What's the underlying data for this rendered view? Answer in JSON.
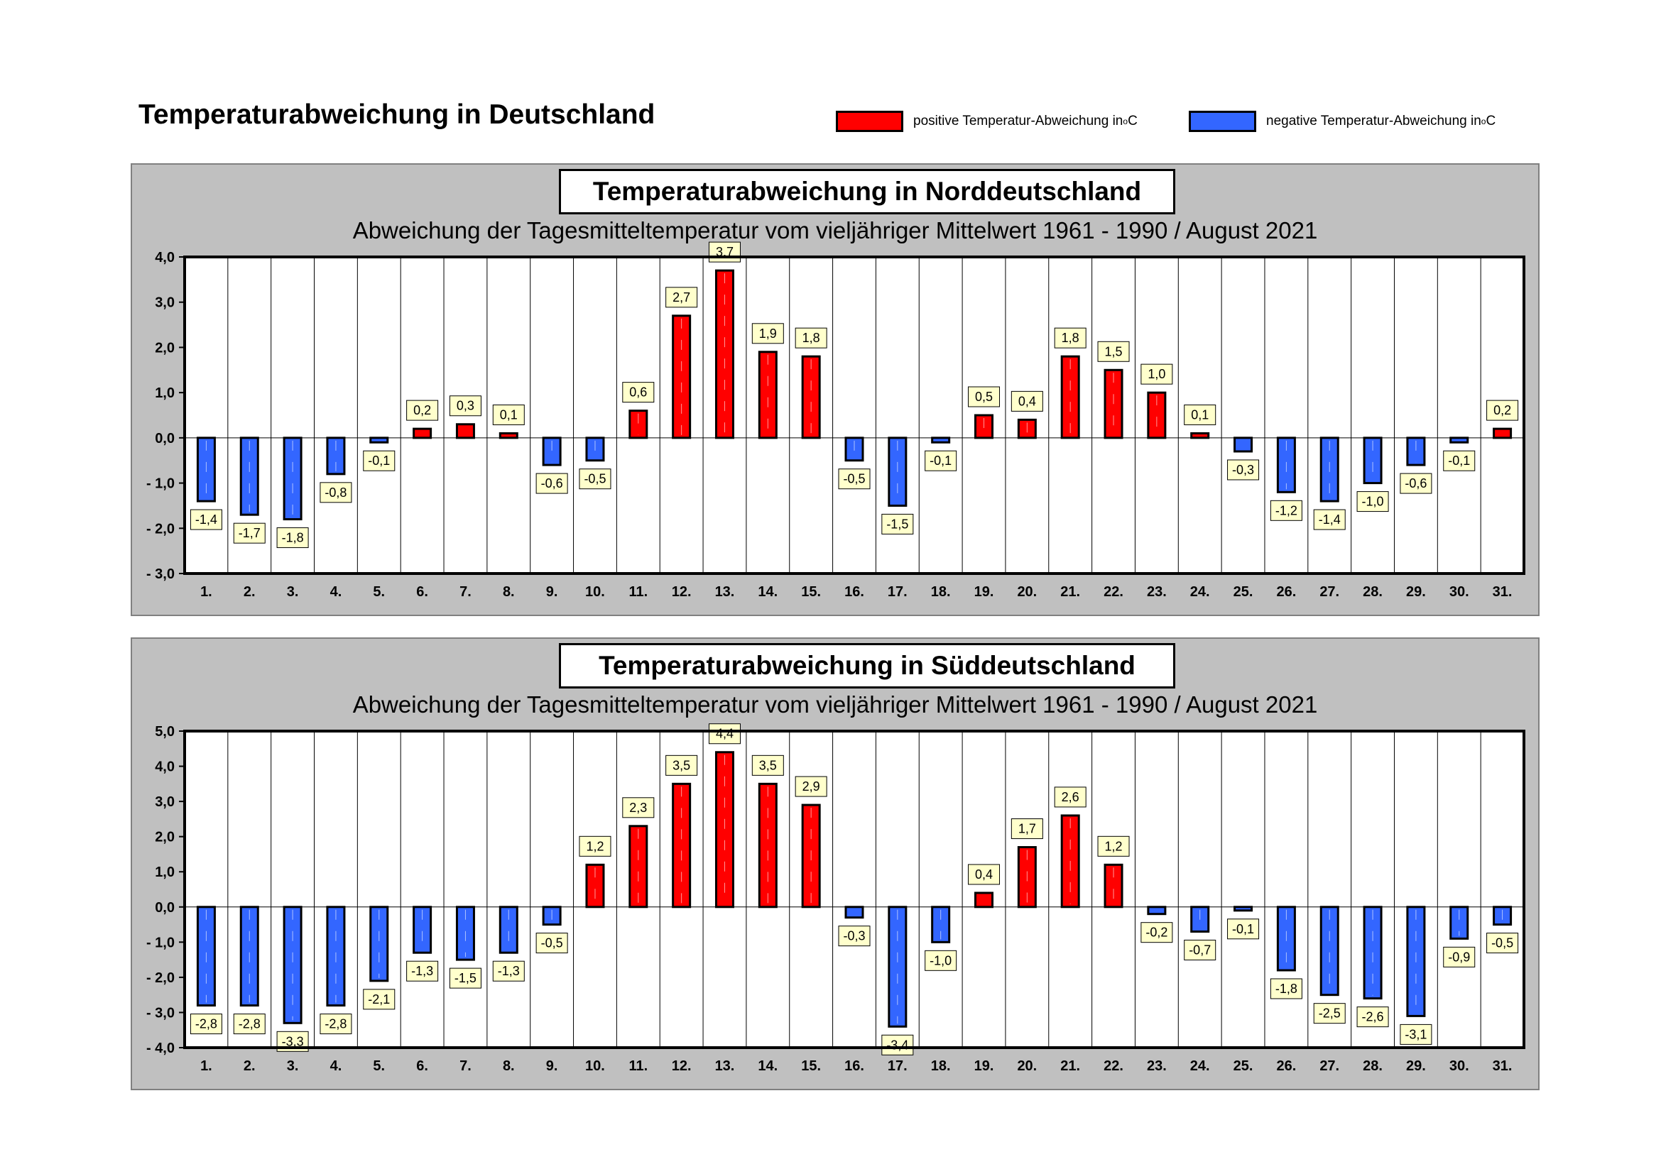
{
  "page": {
    "title": "Temperaturabweichung in Deutschland",
    "legend": {
      "positive_label": "positive Temperatur-Abweichung in ",
      "negative_label": "negative Temperatur-Abweichung in ",
      "degree_symbol": "o",
      "unit": "C",
      "positive_color": "#ff0000",
      "negative_color": "#3366ff"
    }
  },
  "chart_data": [
    {
      "id": "nord",
      "type": "bar",
      "title": "Temperaturabweichung in Norddeutschland",
      "subtitle": "Abweichung der Tagesmitteltemperatur vom vieljähriger Mittelwert 1961 - 1990  /  August 2021",
      "xlabel": "",
      "ylabel": "",
      "categories": [
        "1.",
        "2.",
        "3.",
        "4.",
        "5.",
        "6.",
        "7.",
        "8.",
        "9.",
        "10.",
        "11.",
        "12.",
        "13.",
        "14.",
        "15.",
        "16.",
        "17.",
        "18.",
        "19.",
        "20.",
        "21.",
        "22.",
        "23.",
        "24.",
        "25.",
        "26.",
        "27.",
        "28.",
        "29.",
        "30.",
        "31."
      ],
      "values": [
        -1.4,
        -1.7,
        -1.8,
        -0.8,
        -0.1,
        0.2,
        0.3,
        0.1,
        -0.6,
        -0.5,
        0.6,
        2.7,
        3.7,
        1.9,
        1.8,
        -0.5,
        -1.5,
        -0.1,
        0.5,
        0.4,
        1.8,
        1.5,
        1.0,
        0.1,
        -0.3,
        -1.2,
        -1.4,
        -1.0,
        -0.6,
        -0.1,
        0.2
      ],
      "ylim": [
        -3,
        4
      ],
      "yticks": [
        4,
        3,
        2,
        1,
        0,
        -1,
        -2,
        -3
      ],
      "ytick_labels": [
        "4,0",
        "3,0",
        "2,0",
        "1,0",
        "0,0",
        "- 1,0",
        "- 2,0",
        "- 3,0"
      ],
      "grid": "vertical"
    },
    {
      "id": "sued",
      "type": "bar",
      "title": "Temperaturabweichung in Süddeutschland",
      "subtitle": "Abweichung der Tagesmitteltemperatur vom vieljähriger Mittelwert 1961 - 1990  /  August 2021",
      "xlabel": "",
      "ylabel": "",
      "categories": [
        "1.",
        "2.",
        "3.",
        "4.",
        "5.",
        "6.",
        "7.",
        "8.",
        "9.",
        "10.",
        "11.",
        "12.",
        "13.",
        "14.",
        "15.",
        "16.",
        "17.",
        "18.",
        "19.",
        "20.",
        "21.",
        "22.",
        "23.",
        "24.",
        "25.",
        "26.",
        "27.",
        "28.",
        "29.",
        "30.",
        "31."
      ],
      "values": [
        -2.8,
        -2.8,
        -3.3,
        -2.8,
        -2.1,
        -1.3,
        -1.5,
        -1.3,
        -0.5,
        1.2,
        2.3,
        3.5,
        4.4,
        3.5,
        2.9,
        -0.3,
        -3.4,
        -1.0,
        0.4,
        1.7,
        2.6,
        1.2,
        -0.2,
        -0.7,
        -0.1,
        -1.8,
        -2.5,
        -2.6,
        -3.1,
        -0.9,
        -0.5
      ],
      "ylim": [
        -4,
        5
      ],
      "yticks": [
        5,
        4,
        3,
        2,
        1,
        0,
        -1,
        -2,
        -3,
        -4
      ],
      "ytick_labels": [
        "5,0",
        "4,0",
        "3,0",
        "2,0",
        "1,0",
        "0,0",
        "- 1,0",
        "- 2,0",
        "- 3,0",
        "- 4,0"
      ],
      "grid": "vertical"
    }
  ]
}
